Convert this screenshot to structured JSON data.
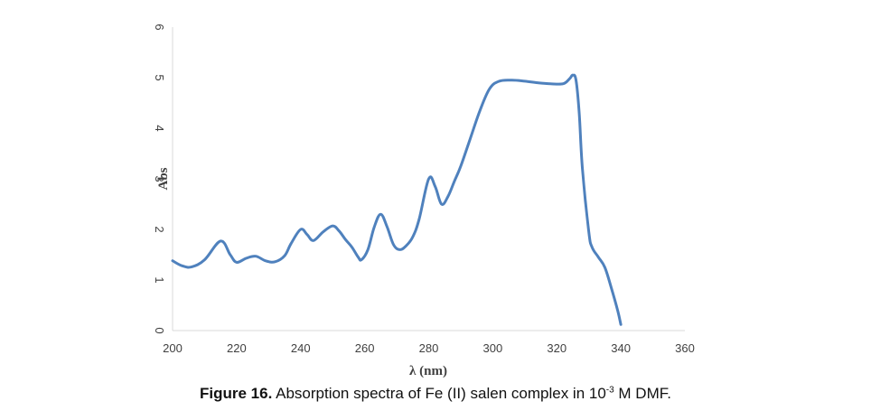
{
  "chart_data": {
    "type": "line",
    "xlabel": "λ (nm)",
    "ylabel": "Abs",
    "xlim": [
      200,
      360
    ],
    "ylim": [
      0,
      6
    ],
    "xticks": [
      "200",
      "220",
      "240",
      "260",
      "280",
      "300",
      "320",
      "340",
      "360"
    ],
    "yticks": [
      "0",
      "1",
      "2",
      "3",
      "4",
      "5",
      "6"
    ],
    "grid": false,
    "line_color": "#4f81bd",
    "series": [
      {
        "x": [
          200,
          203,
          206,
          210,
          215,
          218,
          220,
          223,
          226,
          229,
          232,
          235,
          237,
          240,
          242,
          244,
          247,
          250,
          252,
          254,
          256,
          258,
          259,
          261,
          263,
          265,
          267,
          269,
          271,
          273,
          275,
          277,
          280,
          282,
          284,
          286,
          288,
          290,
          293,
          296,
          299,
          302,
          306,
          310,
          314,
          318,
          322,
          324,
          325,
          326,
          327,
          328,
          330,
          331,
          333,
          335,
          337,
          339,
          340
        ],
        "y": [
          1.38,
          1.28,
          1.26,
          1.4,
          1.77,
          1.5,
          1.35,
          1.43,
          1.47,
          1.38,
          1.36,
          1.48,
          1.72,
          2.0,
          1.9,
          1.78,
          1.95,
          2.07,
          1.97,
          1.8,
          1.65,
          1.45,
          1.4,
          1.6,
          2.05,
          2.3,
          2.05,
          1.7,
          1.6,
          1.68,
          1.85,
          2.2,
          3.0,
          2.85,
          2.5,
          2.65,
          2.95,
          3.25,
          3.8,
          4.35,
          4.78,
          4.93,
          4.95,
          4.93,
          4.9,
          4.88,
          4.88,
          4.98,
          5.05,
          4.95,
          4.3,
          3.2,
          1.95,
          1.65,
          1.45,
          1.25,
          0.85,
          0.4,
          0.12
        ]
      }
    ]
  },
  "caption": {
    "label": "Figure 16.",
    "text_before": " Absorption spectra of Fe (II) salen complex in 10",
    "superscript": "-3",
    "text_after": " M DMF."
  }
}
